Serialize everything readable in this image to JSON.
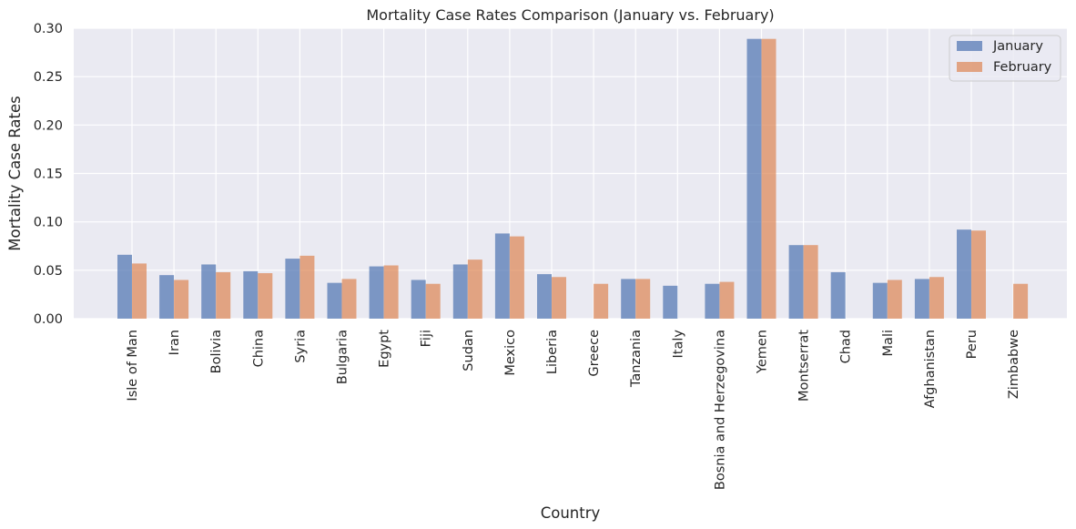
{
  "chart_data": {
    "type": "bar",
    "title": "Mortality Case Rates Comparison (January vs. February)",
    "xlabel": "Country",
    "ylabel": "Mortality Case Rates",
    "ylim": [
      0,
      0.3
    ],
    "yticks": [
      "0.00",
      "0.05",
      "0.10",
      "0.15",
      "0.20",
      "0.25",
      "0.30"
    ],
    "yticks_values": [
      0,
      0.05,
      0.1,
      0.15,
      0.2,
      0.25,
      0.3
    ],
    "grid": true,
    "legend_position": "top-right",
    "categories": [
      "Isle of Man",
      "Iran",
      "Bolivia",
      "China",
      "Syria",
      "Bulgaria",
      "Egypt",
      "Fiji",
      "Sudan",
      "Mexico",
      "Liberia",
      "Greece",
      "Tanzania",
      "Italy",
      "Bosnia and Herzegovina",
      "Yemen",
      "Montserrat",
      "Chad",
      "Mali",
      "Afghanistan",
      "Peru",
      "Zimbabwe"
    ],
    "series": [
      {
        "name": "January",
        "color": "#4c72b0",
        "values": [
          0.066,
          0.045,
          0.056,
          0.049,
          0.062,
          0.037,
          0.054,
          0.04,
          0.056,
          0.088,
          0.046,
          null,
          0.041,
          0.034,
          0.036,
          0.289,
          0.076,
          0.048,
          0.037,
          0.041,
          0.092,
          null
        ]
      },
      {
        "name": "February",
        "color": "#dd8452",
        "values": [
          0.057,
          0.04,
          0.048,
          0.047,
          0.065,
          0.041,
          0.055,
          0.036,
          0.061,
          0.085,
          0.043,
          0.036,
          0.041,
          null,
          0.038,
          0.289,
          0.076,
          null,
          0.04,
          0.043,
          0.091,
          0.036
        ]
      }
    ]
  }
}
